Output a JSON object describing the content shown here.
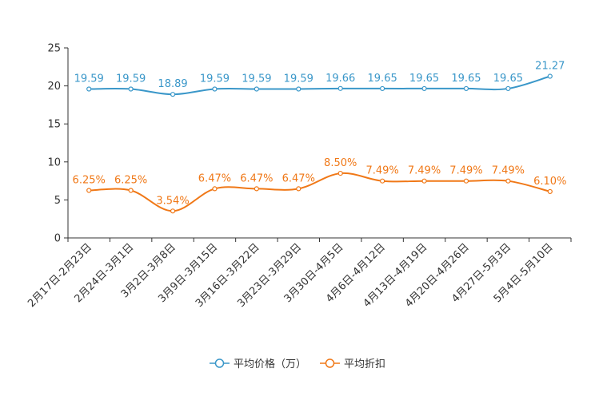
{
  "chart_data": {
    "type": "line",
    "title": "",
    "xlabel": "",
    "ylabel": "",
    "ylim": [
      0,
      25
    ],
    "yticks": [
      0,
      5,
      10,
      15,
      20,
      25
    ],
    "grid": false,
    "legend_position": "bottom",
    "categories": [
      "2月17日-2月23日",
      "2月24日-3月1日",
      "3月2日-3月8日",
      "3月9日-3月15日",
      "3月16日-3月22日",
      "3月23日-3月29日",
      "3月30日-4月5日",
      "4月6日-4月12日",
      "4月13日-4月19日",
      "4月20日-4月26日",
      "4月27日-5月3日",
      "5月4日-5月10日"
    ],
    "series": [
      {
        "name": "平均价格（万）",
        "color": "#3a97c9",
        "values": [
          19.59,
          19.59,
          18.89,
          19.59,
          19.59,
          19.59,
          19.66,
          19.65,
          19.65,
          19.65,
          19.65,
          21.27
        ],
        "labels": [
          "19.59",
          "19.59",
          "18.89",
          "19.59",
          "19.59",
          "19.59",
          "19.66",
          "19.65",
          "19.65",
          "19.65",
          "19.65",
          "21.27"
        ]
      },
      {
        "name": "平均折扣",
        "color": "#f07817",
        "values": [
          6.25,
          6.25,
          3.54,
          6.47,
          6.47,
          6.47,
          8.5,
          7.49,
          7.49,
          7.49,
          7.49,
          6.1
        ],
        "labels": [
          "6.25%",
          "6.25%",
          "3.54%",
          "6.47%",
          "6.47%",
          "6.47%",
          "8.50%",
          "7.49%",
          "7.49%",
          "7.49%",
          "7.49%",
          "6.10%"
        ]
      }
    ]
  }
}
